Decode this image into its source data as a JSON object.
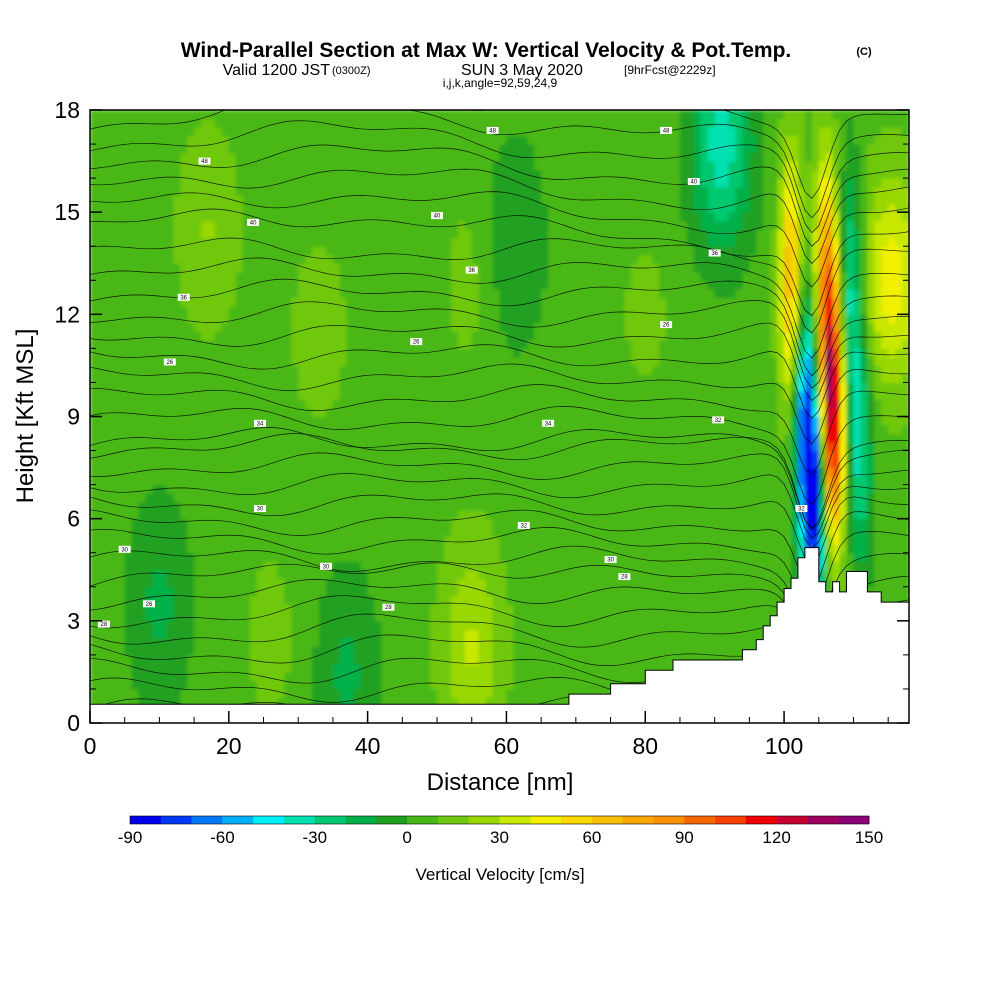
{
  "header": {
    "title": "Wind-Parallel Section at Max W: Vertical Velocity & Pot.Temp.",
    "copyright": "(C)",
    "valid_prefix": "Valid 1200 JST",
    "valid_zulu": "(0300Z)",
    "valid_date": "SUN 3 May 2020",
    "forecast": "[9hrFcst@2229z]",
    "indices": "i,j,k,angle=92,59,24,9"
  },
  "chart_data": {
    "type": "heatmap",
    "xlabel": "Distance [nm]",
    "ylabel": "Height [Kft MSL]",
    "xlim": [
      0,
      118
    ],
    "ylim": [
      0,
      18
    ],
    "xticks": [
      "0",
      "20",
      "40",
      "60",
      "80",
      "100"
    ],
    "yticks": [
      "0",
      "3",
      "6",
      "9",
      "12",
      "15",
      "18"
    ],
    "grid": false,
    "terrain": {
      "distance_nm": [
        0,
        69,
        69,
        75,
        75,
        80,
        80,
        84,
        84,
        94,
        94,
        96,
        96,
        97,
        97,
        98,
        98,
        99,
        99,
        100,
        100,
        101,
        101,
        102,
        102,
        103,
        103,
        105,
        105,
        106,
        106,
        107,
        107,
        108,
        108,
        109,
        109,
        112,
        112,
        114,
        114,
        118
      ],
      "height_kft": [
        0,
        0,
        0.3,
        0.3,
        0.6,
        0.6,
        1.0,
        1.0,
        1.3,
        1.3,
        1.6,
        1.6,
        1.9,
        1.9,
        2.3,
        2.3,
        2.6,
        2.6,
        3.0,
        3.0,
        3.4,
        3.4,
        3.7,
        3.7,
        4.3,
        4.3,
        4.6,
        4.6,
        3.6,
        3.6,
        3.3,
        3.3,
        3.6,
        3.6,
        3.3,
        3.3,
        3.9,
        3.9,
        3.3,
        3.3,
        3.0,
        3.0
      ]
    },
    "vertical_velocity_cm_s": {
      "background": 5,
      "features": [
        {
          "x": 17,
          "y": 14.5,
          "value": 22
        },
        {
          "x": 33,
          "y": 11.5,
          "value": 16
        },
        {
          "x": 55,
          "y": 2.3,
          "value": 34
        },
        {
          "x": 55,
          "y": 13,
          "value": 15
        },
        {
          "x": 26,
          "y": 2.5,
          "value": 14
        },
        {
          "x": 10,
          "y": 3.5,
          "value": -14
        },
        {
          "x": 37,
          "y": 1.4,
          "value": -14
        },
        {
          "x": 61,
          "y": 14,
          "value": -13
        },
        {
          "x": 80,
          "y": 12,
          "value": 13
        },
        {
          "x": 91,
          "y": 17,
          "value": -40
        },
        {
          "x": 101,
          "y": 13,
          "value": 78
        },
        {
          "x": 107,
          "y": 9,
          "value": 140
        },
        {
          "x": 106,
          "y": 13,
          "value": 82
        },
        {
          "x": 103,
          "y": 9,
          "value": -75
        },
        {
          "x": 104.5,
          "y": 6.2,
          "value": -85
        },
        {
          "x": 109.5,
          "y": 12.5,
          "value": -45
        },
        {
          "x": 111,
          "y": 8,
          "value": -36
        },
        {
          "x": 115.5,
          "y": 13,
          "value": 50
        }
      ]
    },
    "potential_temperature_contours": {
      "interval": 2,
      "labels": [
        {
          "text": "48",
          "x": 16.5,
          "y": 16.5
        },
        {
          "text": "48",
          "x": 58,
          "y": 17.4
        },
        {
          "text": "48",
          "x": 83,
          "y": 17.4
        },
        {
          "text": "40",
          "x": 23.5,
          "y": 14.7
        },
        {
          "text": "40",
          "x": 50,
          "y": 14.9
        },
        {
          "text": "40",
          "x": 87,
          "y": 15.9
        },
        {
          "text": "36",
          "x": 13.5,
          "y": 12.5
        },
        {
          "text": "36",
          "x": 55,
          "y": 13.3
        },
        {
          "text": "36",
          "x": 90,
          "y": 13.8
        },
        {
          "text": "26",
          "x": 11.5,
          "y": 10.6
        },
        {
          "text": "26",
          "x": 47,
          "y": 11.2
        },
        {
          "text": "26",
          "x": 83,
          "y": 11.7
        },
        {
          "text": "34",
          "x": 24.5,
          "y": 8.8
        },
        {
          "text": "34",
          "x": 66,
          "y": 8.8
        },
        {
          "text": "32",
          "x": 90.5,
          "y": 8.9
        },
        {
          "text": "30",
          "x": 24.5,
          "y": 6.3
        },
        {
          "text": "32",
          "x": 62.5,
          "y": 5.8
        },
        {
          "text": "32",
          "x": 102.5,
          "y": 6.3
        },
        {
          "text": "30",
          "x": 5,
          "y": 5.1
        },
        {
          "text": "30",
          "x": 34,
          "y": 4.6
        },
        {
          "text": "30",
          "x": 75,
          "y": 4.8
        },
        {
          "text": "28",
          "x": 77,
          "y": 4.3
        },
        {
          "text": "26",
          "x": 8.5,
          "y": 3.5
        },
        {
          "text": "28",
          "x": 43,
          "y": 3.4
        },
        {
          "text": "28",
          "x": 2,
          "y": 2.9
        }
      ]
    },
    "colorbar": {
      "label": "Vertical Velocity [cm/s]",
      "ticks": [
        "-90",
        "-60",
        "-30",
        "0",
        "30",
        "60",
        "90",
        "120",
        "150"
      ],
      "range": [
        -90,
        150
      ],
      "step": 10,
      "colors": [
        "#0000f0",
        "#0038f8",
        "#0078f8",
        "#00b0f8",
        "#00f0f8",
        "#00e0b0",
        "#00c870",
        "#00b048",
        "#20a020",
        "#48b818",
        "#70c810",
        "#98d800",
        "#c8e800",
        "#f0f000",
        "#f8d800",
        "#f8c000",
        "#f8a800",
        "#f89000",
        "#f86800",
        "#f84000",
        "#f00000",
        "#c80030",
        "#a00060",
        "#8c0078"
      ]
    }
  }
}
